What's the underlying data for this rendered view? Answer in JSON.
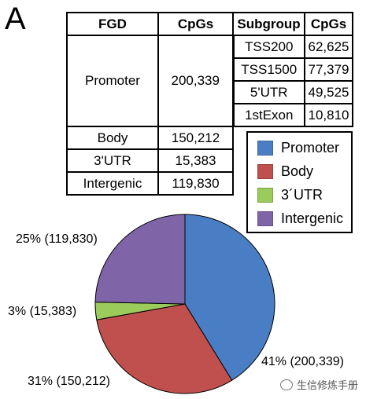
{
  "panel_label": "A",
  "table": {
    "headers": {
      "fgd": "FGD",
      "cpgs": "CpGs",
      "subgroup": "Subgroup",
      "sub_cpgs": "CpGs"
    },
    "promoter": {
      "label": "Promoter",
      "value": "200,339",
      "subgroups": [
        {
          "name": "TSS200",
          "value": "62,625"
        },
        {
          "name": "TSS1500",
          "value": "77,379"
        },
        {
          "name": "5'UTR",
          "value": "49,525"
        },
        {
          "name": "1stExon",
          "value": "10,810"
        }
      ]
    },
    "rows": [
      {
        "label": "Body",
        "value": "150,212"
      },
      {
        "label": "3'UTR",
        "value": "15,383"
      },
      {
        "label": "Intergenic",
        "value": "119,830"
      }
    ]
  },
  "chart_data": {
    "type": "pie",
    "slices": [
      {
        "name": "Promoter",
        "value": 200339,
        "label": "41% (200,339)",
        "color": "#4A7EC4"
      },
      {
        "name": "Body",
        "value": 150212,
        "label": "31% (150,212)",
        "color": "#C0504D"
      },
      {
        "name": "3´UTR",
        "value": 15383,
        "label": "3% (15,383)",
        "color": "#9BCB5B"
      },
      {
        "name": "Intergenic",
        "value": 119830,
        "label": "25% (119,830)",
        "color": "#7F65A8"
      }
    ],
    "legend_position": "top-right"
  },
  "watermark": "生信修炼手册"
}
